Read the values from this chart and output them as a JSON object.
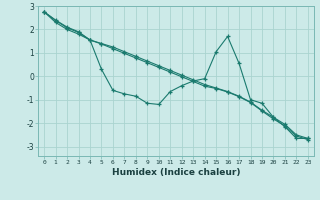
{
  "xlabel": "Humidex (Indice chaleur)",
  "background_color": "#cceae8",
  "grid_color": "#aad4d0",
  "line_color": "#1a7a6e",
  "xlim": [
    -0.5,
    23.5
  ],
  "ylim": [
    -3.4,
    3.0
  ],
  "yticks": [
    -3,
    -2,
    -1,
    0,
    1,
    2,
    3
  ],
  "xticks": [
    0,
    1,
    2,
    3,
    4,
    5,
    6,
    7,
    8,
    9,
    10,
    11,
    12,
    13,
    14,
    15,
    16,
    17,
    18,
    19,
    20,
    21,
    22,
    23
  ],
  "line1_x": [
    0,
    1,
    2,
    3,
    4,
    5,
    6,
    7,
    8,
    9,
    10,
    11,
    12,
    13,
    14,
    15,
    16,
    17,
    18,
    19,
    20,
    21,
    22,
    23
  ],
  "line1_y": [
    2.75,
    2.3,
    2.0,
    1.8,
    1.55,
    0.3,
    -0.6,
    -0.75,
    -0.85,
    -1.15,
    -1.2,
    -0.65,
    -0.4,
    -0.2,
    -0.1,
    1.05,
    1.7,
    0.55,
    -1.0,
    -1.15,
    -1.75,
    -2.15,
    -2.65,
    -2.65
  ],
  "line2_x": [
    0,
    1,
    2,
    3,
    4,
    5,
    6,
    7,
    8,
    9,
    10,
    11,
    12,
    13,
    14,
    15,
    16,
    17,
    18,
    19,
    20,
    21,
    22,
    23
  ],
  "line2_y": [
    2.75,
    2.4,
    2.1,
    1.9,
    1.55,
    1.4,
    1.25,
    1.05,
    0.85,
    0.65,
    0.45,
    0.25,
    0.05,
    -0.15,
    -0.35,
    -0.5,
    -0.65,
    -0.85,
    -1.1,
    -1.45,
    -1.75,
    -2.05,
    -2.5,
    -2.65
  ],
  "line3_x": [
    0,
    1,
    2,
    3,
    4,
    5,
    6,
    7,
    8,
    9,
    10,
    11,
    12,
    13,
    14,
    15,
    16,
    17,
    18,
    19,
    20,
    21,
    22,
    23
  ],
  "line3_y": [
    2.75,
    2.38,
    2.07,
    1.87,
    1.55,
    1.38,
    1.18,
    0.98,
    0.78,
    0.58,
    0.38,
    0.18,
    -0.02,
    -0.22,
    -0.42,
    -0.52,
    -0.67,
    -0.87,
    -1.12,
    -1.48,
    -1.82,
    -2.12,
    -2.55,
    -2.7
  ]
}
